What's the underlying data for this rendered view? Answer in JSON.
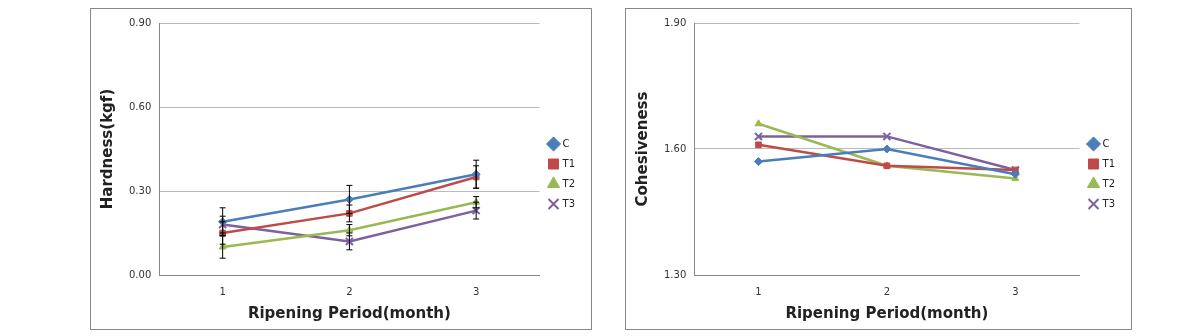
{
  "chart_data": [
    {
      "type": "line",
      "y_label": "Hardness(kgf)",
      "x_label": "Ripening Period(month)",
      "categories": [
        "1",
        "2",
        "3"
      ],
      "series": [
        {
          "name": "C",
          "color": "#4a7ebb",
          "marker": "diamond",
          "values": [
            0.19,
            0.27,
            0.36
          ],
          "errors": [
            0.05,
            0.05,
            0.05
          ]
        },
        {
          "name": "T1",
          "color": "#be4b48",
          "marker": "square",
          "values": [
            0.15,
            0.22,
            0.35
          ],
          "errors": [
            0.04,
            0.03,
            0.04
          ]
        },
        {
          "name": "T2",
          "color": "#98b954",
          "marker": "triangle",
          "values": [
            0.1,
            0.16,
            0.26
          ],
          "errors": [
            0.04,
            0.02,
            0.02
          ]
        },
        {
          "name": "T3",
          "color": "#7d60a0",
          "marker": "cross",
          "values": [
            0.18,
            0.12,
            0.23
          ],
          "errors": [
            0.03,
            0.03,
            0.03
          ]
        }
      ],
      "ylim": [
        0,
        0.9
      ],
      "yticks": [
        {
          "value": 0,
          "label": "0.00"
        },
        {
          "value": 0.3,
          "label": "0.30"
        },
        {
          "value": 0.6,
          "label": "0.60"
        },
        {
          "value": 0.9,
          "label": "0.90"
        }
      ],
      "grid": true,
      "legend": "right"
    },
    {
      "type": "line",
      "y_label": "Cohesiveness",
      "x_label": "Ripening Period(month)",
      "categories": [
        "1",
        "2",
        "3"
      ],
      "series": [
        {
          "name": "C",
          "color": "#4a7ebb",
          "marker": "diamond",
          "values": [
            1.57,
            1.6,
            1.54
          ]
        },
        {
          "name": "T1",
          "color": "#be4b48",
          "marker": "square",
          "values": [
            1.61,
            1.56,
            1.55
          ]
        },
        {
          "name": "T2",
          "color": "#98b954",
          "marker": "triangle",
          "values": [
            1.66,
            1.56,
            1.53
          ]
        },
        {
          "name": "T3",
          "color": "#7d60a0",
          "marker": "cross",
          "values": [
            1.63,
            1.63,
            1.55
          ]
        }
      ],
      "ylim": [
        1.3,
        1.9
      ],
      "yticks": [
        {
          "value": 1.3,
          "label": "1.30"
        },
        {
          "value": 1.6,
          "label": "1.60"
        },
        {
          "value": 1.9,
          "label": "1.90"
        }
      ],
      "grid": true,
      "legend": "right"
    }
  ]
}
